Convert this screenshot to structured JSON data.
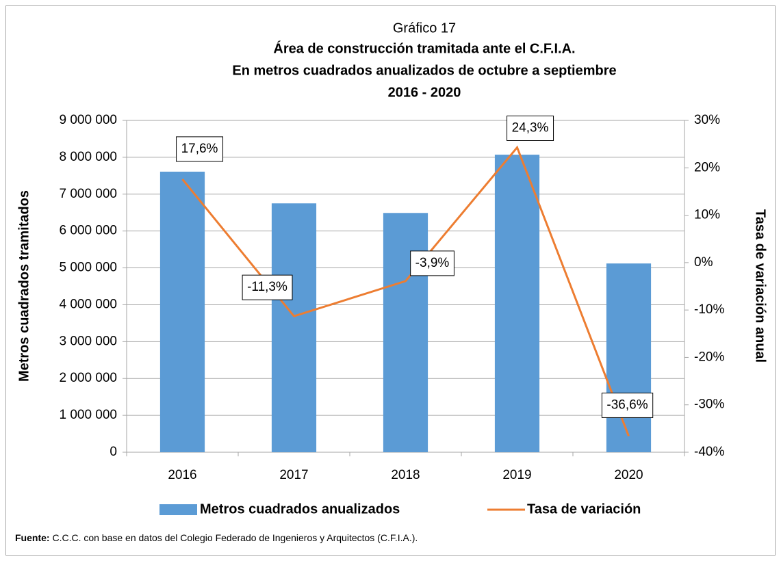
{
  "chart_data": {
    "type": "bar_line",
    "title": "Gráfico 17",
    "subtitle": [
      "Área de construcción tramitada ante el C.F.I.A.",
      "En metros cuadrados anualizados de octubre a septiembre",
      "2016 - 2020"
    ],
    "categories": [
      "2016",
      "2017",
      "2018",
      "2019",
      "2020"
    ],
    "series": [
      {
        "name": "Metros cuadrados anualizados",
        "color": "#5b9bd5",
        "axis": "y",
        "type": "bar",
        "values": [
          7610000,
          6750000,
          6490000,
          8070000,
          5120000
        ]
      },
      {
        "name": "Tasa de variación",
        "color": "#ed7d31",
        "axis": "y2",
        "type": "line",
        "values": [
          17.6,
          -11.3,
          -3.9,
          24.3,
          -36.6
        ],
        "value_labels": [
          "17,6%",
          "-11,3%",
          "-3,9%",
          "24,3%",
          "-36,6%"
        ]
      }
    ],
    "ylabel": "Metros cuadrados tramitados",
    "y2label": "Tasa de variación anual",
    "ylim": [
      0,
      9000000
    ],
    "yticks": [
      0,
      {
        "value": 1000000,
        "label": "1 000 000"
      },
      {
        "value": 2000000,
        "label": "2 000 000"
      },
      {
        "value": 3000000,
        "label": "3 000 000"
      },
      {
        "value": 4000000,
        "label": "4 000 000"
      },
      {
        "value": 5000000,
        "label": "5 000 000"
      },
      {
        "value": 6000000,
        "label": "6 000 000"
      },
      {
        "value": 7000000,
        "label": "7 000 000"
      },
      {
        "value": 8000000,
        "label": "8 000 000"
      },
      {
        "value": 9000000,
        "label": "9 000 000"
      }
    ],
    "y2lim": [
      -40,
      30
    ],
    "y2ticks": [
      {
        "value": -40,
        "label": "-40%"
      },
      {
        "value": -30,
        "label": "-30%"
      },
      {
        "value": -20,
        "label": "-20%"
      },
      {
        "value": -10,
        "label": "-10%"
      },
      {
        "value": 0,
        "label": "0%"
      },
      {
        "value": 10,
        "label": "10%"
      },
      {
        "value": 20,
        "label": "20%"
      },
      {
        "value": 30,
        "label": "30%"
      }
    ],
    "grid": true,
    "legend": "bottom",
    "source": {
      "label": "Fuente:",
      "text": " C.C.C. con base en datos del Colegio Federado de Ingenieros y Arquitectos (C.F.I.A.)."
    }
  }
}
